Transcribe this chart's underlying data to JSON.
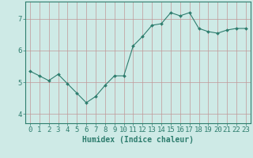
{
  "x": [
    0,
    1,
    2,
    3,
    4,
    5,
    6,
    7,
    8,
    9,
    10,
    11,
    12,
    13,
    14,
    15,
    16,
    17,
    18,
    19,
    20,
    21,
    22,
    23
  ],
  "y": [
    5.35,
    5.2,
    5.05,
    5.25,
    4.95,
    4.65,
    4.35,
    4.55,
    4.9,
    5.2,
    5.2,
    6.15,
    6.45,
    6.8,
    6.85,
    7.2,
    7.1,
    7.2,
    6.7,
    6.6,
    6.55,
    6.65,
    6.7,
    6.7
  ],
  "line_color": "#2e7d6e",
  "marker": "D",
  "marker_size": 2.0,
  "bg_color": "#ceeae6",
  "grid_color_v": "#c09898",
  "grid_color_h": "#c09898",
  "axis_color": "#2e7d6e",
  "xlabel": "Humidex (Indice chaleur)",
  "xlabel_fontsize": 7,
  "tick_fontsize": 6.5,
  "ylim": [
    3.7,
    7.55
  ],
  "yticks": [
    4,
    5,
    6,
    7
  ],
  "xlim": [
    -0.5,
    23.5
  ],
  "xticks": [
    0,
    1,
    2,
    3,
    4,
    5,
    6,
    7,
    8,
    9,
    10,
    11,
    12,
    13,
    14,
    15,
    16,
    17,
    18,
    19,
    20,
    21,
    22,
    23
  ]
}
